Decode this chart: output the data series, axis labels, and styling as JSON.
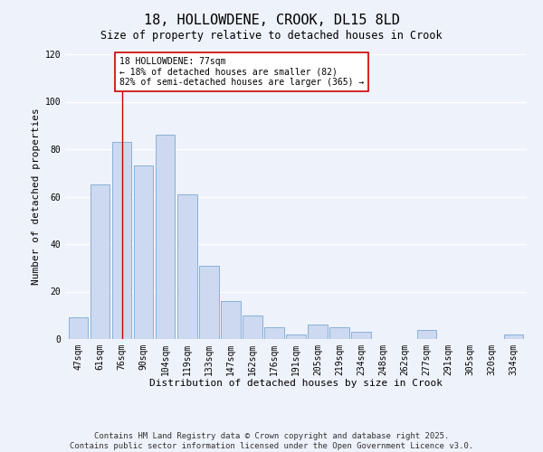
{
  "title": "18, HOLLOWDENE, CROOK, DL15 8LD",
  "subtitle": "Size of property relative to detached houses in Crook",
  "xlabel": "Distribution of detached houses by size in Crook",
  "ylabel": "Number of detached properties",
  "categories": [
    "47sqm",
    "61sqm",
    "76sqm",
    "90sqm",
    "104sqm",
    "119sqm",
    "133sqm",
    "147sqm",
    "162sqm",
    "176sqm",
    "191sqm",
    "205sqm",
    "219sqm",
    "234sqm",
    "248sqm",
    "262sqm",
    "277sqm",
    "291sqm",
    "305sqm",
    "320sqm",
    "334sqm"
  ],
  "values": [
    9,
    65,
    83,
    73,
    86,
    61,
    31,
    16,
    10,
    5,
    2,
    6,
    5,
    3,
    0,
    0,
    4,
    0,
    0,
    0,
    2
  ],
  "bar_color": "#ccd9f0",
  "bar_edge_color": "#8ab0d8",
  "vline_x_index": 2,
  "vline_color": "#cc0000",
  "annotation_text": "18 HOLLOWDENE: 77sqm\n← 18% of detached houses are smaller (82)\n82% of semi-detached houses are larger (365) →",
  "annotation_box_edge": "#cc0000",
  "ylim": [
    0,
    120
  ],
  "yticks": [
    0,
    20,
    40,
    60,
    80,
    100,
    120
  ],
  "footer1": "Contains HM Land Registry data © Crown copyright and database right 2025.",
  "footer2": "Contains public sector information licensed under the Open Government Licence v3.0.",
  "background_color": "#eef2fb",
  "title_fontsize": 11,
  "axis_label_fontsize": 8,
  "tick_fontsize": 7,
  "annotation_fontsize": 7,
  "footer_fontsize": 6.5
}
